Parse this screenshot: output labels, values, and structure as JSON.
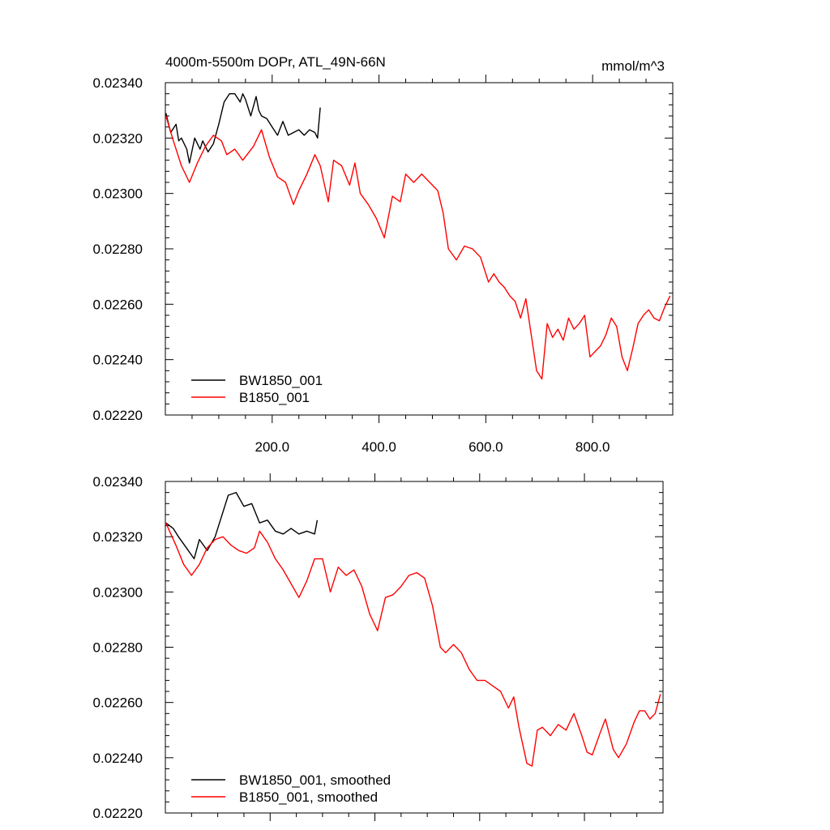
{
  "page": {
    "title": "4000m-5500m DOPr, ATL_49N-66N",
    "units": "mmol/m^3"
  },
  "chart_data": [
    {
      "type": "line",
      "title": "4000m-5500m DOPr, ATL_49N-66N",
      "units": "mmol/m^3",
      "xlim": [
        0,
        950
      ],
      "ylim": [
        0.0222,
        0.0234
      ],
      "xticks": [
        200,
        400,
        600,
        800
      ],
      "xtick_labels": [
        "200.0",
        "400.0",
        "600.0",
        "800.0"
      ],
      "yticks": [
        0.0222,
        0.0224,
        0.0226,
        0.0228,
        0.023,
        0.0232,
        0.0234
      ],
      "ytick_labels": [
        "0.02220",
        "0.02240",
        "0.02260",
        "0.02280",
        "0.02300",
        "0.02320",
        "0.02340"
      ],
      "legend_position": "bottom-left",
      "series": [
        {
          "name": "BW1850_001",
          "color": "#000000",
          "x": [
            1,
            10,
            20,
            25,
            30,
            40,
            45,
            55,
            60,
            65,
            70,
            80,
            90,
            100,
            110,
            120,
            130,
            140,
            145,
            150,
            160,
            170,
            175,
            180,
            190,
            200,
            210,
            220,
            230,
            240,
            250,
            260,
            270,
            280,
            285,
            290
          ],
          "y": [
            0.02329,
            0.02322,
            0.02325,
            0.02319,
            0.0232,
            0.02316,
            0.02311,
            0.0232,
            0.02318,
            0.02316,
            0.02319,
            0.02315,
            0.02318,
            0.02325,
            0.02333,
            0.02336,
            0.02336,
            0.02333,
            0.02336,
            0.02334,
            0.02328,
            0.02335,
            0.0233,
            0.02328,
            0.02327,
            0.02324,
            0.02321,
            0.02326,
            0.02321,
            0.02322,
            0.02323,
            0.02321,
            0.02323,
            0.02322,
            0.0232,
            0.02331
          ]
        },
        {
          "name": "B1850_001",
          "color": "#ff0000",
          "x": [
            1,
            15,
            30,
            45,
            60,
            75,
            90,
            105,
            115,
            130,
            145,
            165,
            180,
            195,
            210,
            225,
            240,
            250,
            265,
            280,
            290,
            305,
            315,
            330,
            345,
            355,
            365,
            380,
            395,
            410,
            425,
            440,
            450,
            465,
            480,
            495,
            500,
            510,
            520,
            530,
            545,
            560,
            575,
            590,
            605,
            615,
            625,
            635,
            645,
            655,
            665,
            675,
            685,
            695,
            705,
            715,
            725,
            735,
            745,
            755,
            765,
            775,
            785,
            795,
            805,
            815,
            825,
            835,
            845,
            855,
            865,
            875,
            885,
            895,
            905,
            915,
            925,
            935,
            945
          ],
          "y": [
            0.02328,
            0.02319,
            0.0231,
            0.02304,
            0.02311,
            0.02317,
            0.02321,
            0.02319,
            0.02314,
            0.02316,
            0.02312,
            0.02317,
            0.02323,
            0.02313,
            0.02306,
            0.02304,
            0.02296,
            0.02301,
            0.02307,
            0.02314,
            0.0231,
            0.02297,
            0.02312,
            0.0231,
            0.02303,
            0.02311,
            0.023,
            0.02296,
            0.02291,
            0.02284,
            0.02299,
            0.02297,
            0.02307,
            0.02304,
            0.02307,
            0.02304,
            0.02303,
            0.02301,
            0.02293,
            0.0228,
            0.02276,
            0.02281,
            0.0228,
            0.02277,
            0.02268,
            0.02271,
            0.02268,
            0.02266,
            0.02263,
            0.02261,
            0.02255,
            0.02262,
            0.02249,
            0.02236,
            0.02233,
            0.02253,
            0.02248,
            0.02251,
            0.02247,
            0.02255,
            0.02251,
            0.02253,
            0.02256,
            0.02241,
            0.02243,
            0.02245,
            0.02249,
            0.02255,
            0.02252,
            0.02241,
            0.02236,
            0.02244,
            0.02253,
            0.02256,
            0.02258,
            0.02255,
            0.02254,
            0.02259,
            0.02263
          ]
        }
      ]
    },
    {
      "type": "line",
      "xlim": [
        0,
        950
      ],
      "ylim": [
        0.0222,
        0.0234
      ],
      "xticks": [
        200,
        400,
        600,
        800
      ],
      "yticks": [
        0.0222,
        0.0224,
        0.0226,
        0.0228,
        0.023,
        0.0232,
        0.0234
      ],
      "ytick_labels": [
        "0.02220",
        "0.02240",
        "0.02260",
        "0.02280",
        "0.02300",
        "0.02320",
        "0.02340"
      ],
      "legend_position": "bottom-left",
      "series": [
        {
          "name": "BW1850_001, smoothed",
          "color": "#000000",
          "x": [
            1,
            15,
            25,
            40,
            55,
            65,
            80,
            95,
            105,
            120,
            135,
            150,
            165,
            180,
            195,
            210,
            225,
            240,
            255,
            270,
            285,
            290
          ],
          "y": [
            0.02325,
            0.02323,
            0.0232,
            0.02316,
            0.02312,
            0.02319,
            0.02315,
            0.0232,
            0.02326,
            0.02335,
            0.02336,
            0.02331,
            0.02332,
            0.02325,
            0.02326,
            0.02322,
            0.02321,
            0.02323,
            0.02321,
            0.02322,
            0.02321,
            0.02326
          ]
        },
        {
          "name": "B1850_001, smoothed",
          "color": "#ff0000",
          "x": [
            1,
            20,
            35,
            50,
            65,
            80,
            95,
            110,
            125,
            140,
            155,
            170,
            180,
            195,
            210,
            225,
            240,
            255,
            270,
            285,
            300,
            315,
            330,
            345,
            360,
            375,
            390,
            405,
            420,
            435,
            450,
            465,
            480,
            495,
            510,
            525,
            535,
            550,
            565,
            580,
            595,
            610,
            625,
            640,
            655,
            665,
            675,
            690,
            700,
            710,
            720,
            735,
            750,
            765,
            780,
            795,
            805,
            815,
            830,
            840,
            855,
            865,
            880,
            895,
            905,
            915,
            925,
            935,
            945
          ],
          "y": [
            0.02325,
            0.02317,
            0.0231,
            0.02306,
            0.0231,
            0.02316,
            0.02319,
            0.0232,
            0.02317,
            0.02315,
            0.02314,
            0.02316,
            0.02322,
            0.02318,
            0.02312,
            0.02308,
            0.02303,
            0.02298,
            0.02304,
            0.02312,
            0.02312,
            0.023,
            0.02309,
            0.02306,
            0.02308,
            0.02302,
            0.02292,
            0.02286,
            0.02298,
            0.02299,
            0.02302,
            0.02306,
            0.02307,
            0.02305,
            0.02295,
            0.0228,
            0.02278,
            0.02281,
            0.02278,
            0.02272,
            0.02268,
            0.02268,
            0.02266,
            0.02264,
            0.02258,
            0.02262,
            0.02251,
            0.02238,
            0.02237,
            0.0225,
            0.02251,
            0.02248,
            0.02252,
            0.0225,
            0.02256,
            0.02248,
            0.02242,
            0.02241,
            0.02249,
            0.02254,
            0.02243,
            0.0224,
            0.02245,
            0.02253,
            0.02257,
            0.02257,
            0.02254,
            0.02256,
            0.02263
          ]
        }
      ]
    }
  ]
}
